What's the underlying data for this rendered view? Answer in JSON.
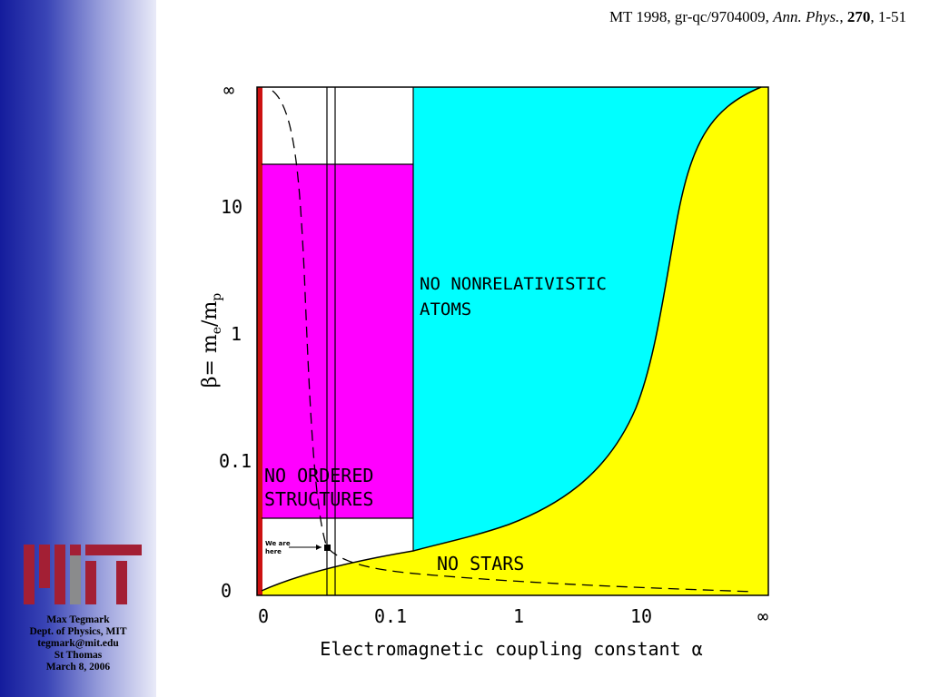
{
  "slide": {
    "citation": {
      "prefix": "MT 1998, gr-qc/9704009, ",
      "journal": "Ann. Phys.",
      "sep1": ", ",
      "volume": "270",
      "pages": ", 1-51"
    },
    "author": {
      "name": "Max Tegmark",
      "dept": "Dept. of Physics, MIT",
      "email": "tegmark@mit.edu",
      "venue": "St Thomas",
      "date": "March 8, 2006"
    },
    "logo": "MIT"
  },
  "diagram": {
    "x_axis_label": "Electromagnetic coupling constant α",
    "y_axis_label_prefix": "β= m",
    "y_axis_label_sub1": "e",
    "y_axis_label_mid": "/m",
    "y_axis_label_sub2": "p",
    "x_ticks": [
      "0",
      "0.1",
      "1",
      "10",
      "∞"
    ],
    "y_ticks": [
      "∞",
      "10",
      "1",
      "0.1",
      "0"
    ],
    "regions": {
      "no_ordered_structures": [
        "NO ORDERED",
        "STRUCTURES"
      ],
      "no_nonrelativistic_atoms": [
        "NO NONRELATIVISTIC",
        "ATOMS"
      ],
      "no_stars": "NO STARS"
    },
    "marker_label": [
      "We are",
      "here"
    ],
    "colors": {
      "magenta": "#ff00ff",
      "cyan": "#00ffff",
      "yellow": "#ffff00",
      "red_strip": "#cc1111",
      "sidebar_dark": "#141c9c"
    }
  }
}
